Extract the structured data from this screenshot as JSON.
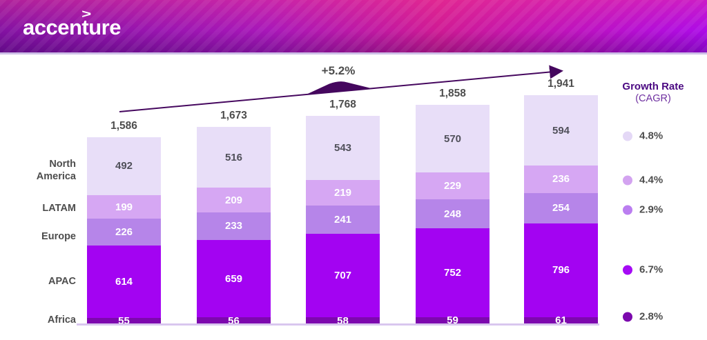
{
  "header": {
    "logo_text": "accenture",
    "logo_chevron": ">"
  },
  "chart_data": {
    "type": "stacked-bar",
    "annotation": "+5.2%",
    "legend_title": "Growth Rate",
    "legend_subtitle": "(CAGR)",
    "totals_display": [
      "1,586",
      "1,673",
      "1,768",
      "1,858",
      "1,941"
    ],
    "categories": [
      "bar-1",
      "bar-2",
      "bar-3",
      "bar-4",
      "bar-5"
    ],
    "series": [
      {
        "name": "North America",
        "cagr": "4.8%",
        "color": "#e8def8",
        "legend_color": "#e4d8f6",
        "text_color": "#50505a",
        "values": [
          492,
          516,
          543,
          570,
          594
        ]
      },
      {
        "name": "LATAM",
        "cagr": "4.4%",
        "color": "#d6a7f3",
        "legend_color": "#d3a3f0",
        "text_color": "#ffffff",
        "values": [
          199,
          209,
          219,
          229,
          236
        ]
      },
      {
        "name": "Europe",
        "cagr": "2.9%",
        "color": "#b685e9",
        "legend_color": "#bb7ef0",
        "text_color": "#ffffff",
        "values": [
          226,
          233,
          241,
          248,
          254
        ]
      },
      {
        "name": "APAC",
        "cagr": "6.7%",
        "color": "#a303f2",
        "legend_color": "#a50af5",
        "text_color": "#ffffff",
        "values": [
          614,
          659,
          707,
          752,
          796
        ]
      },
      {
        "name": "Africa",
        "cagr": "2.8%",
        "color": "#7d08ae",
        "legend_color": "#7b09ad",
        "text_color": "#ffffff",
        "values": [
          55,
          56,
          58,
          59,
          61
        ]
      }
    ],
    "layout_hints": {
      "legend_position": "right",
      "grid": false,
      "x_axis_labels_visible": false
    },
    "colors": {
      "arrow": "#45075e",
      "baseline": "#d9c7ef",
      "label_gray": "#4d4d4d",
      "legend_title": "#4b0982",
      "legend_subtitle": "#6e2fa0"
    }
  }
}
